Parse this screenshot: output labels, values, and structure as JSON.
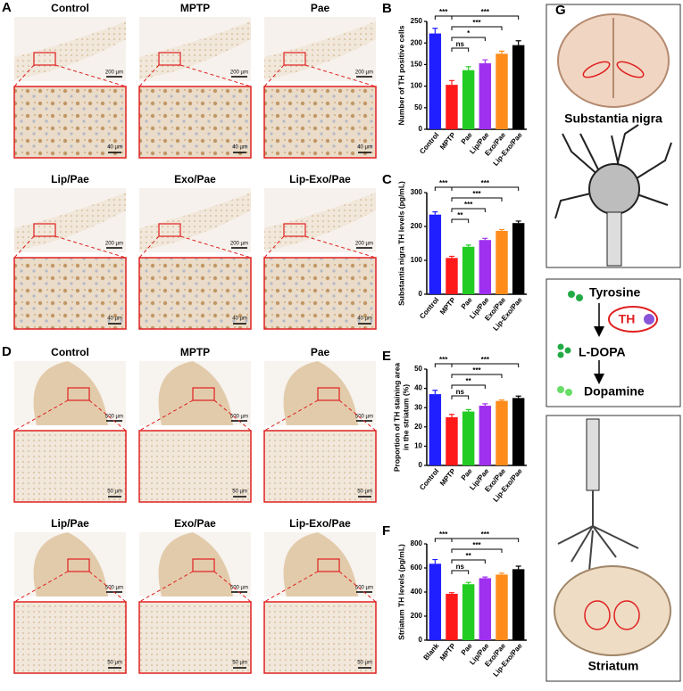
{
  "figure": {
    "panels": [
      {
        "letter": "A",
        "groups": [
          "Control",
          "MPTP",
          "Pae",
          "Lip/Pae",
          "Exo/Pae",
          "Lip-Exo/Pae"
        ],
        "scale_overview": "200 µm",
        "scale_zoom": "40 µm"
      },
      {
        "letter": "D",
        "groups": [
          "Control",
          "MPTP",
          "Pae",
          "Lip/Pae",
          "Exo/Pae",
          "Lip-Exo/Pae"
        ],
        "scale_overview": "500 µm",
        "scale_zoom": "50 µm"
      }
    ],
    "schematic": {
      "letter": "G",
      "top_label": "Substantia nigra",
      "pathway": [
        "Tyrosine",
        "L-DOPA",
        "Dopamine"
      ],
      "enzyme": "TH",
      "bottom_label": "Striatum"
    }
  },
  "chart_data": [
    {
      "panel": "B",
      "type": "bar",
      "ylabel": [
        "Number of TH positive cells"
      ],
      "categories": [
        "Control",
        "MPTP",
        "Pae",
        "Lip/Pae",
        "Exo/Pae",
        "Lip-Exo/Pae"
      ],
      "values": [
        222,
        103,
        137,
        153,
        175,
        195
      ],
      "errors": [
        12,
        10,
        8,
        8,
        6,
        10
      ],
      "colors": [
        "#1f1fff",
        "#ff1a1a",
        "#22cc22",
        "#a030f0",
        "#ff8c1a",
        "#000000"
      ],
      "ylim": [
        0,
        250
      ],
      "yticks": [
        0,
        50,
        100,
        150,
        200,
        250
      ],
      "annotations": [
        {
          "label": "***",
          "from": 0,
          "to": 1
        },
        {
          "label": "***",
          "from": 1,
          "to": 5
        },
        {
          "label": "***",
          "from": 1,
          "to": 4
        },
        {
          "label": "*",
          "from": 1,
          "to": 3
        },
        {
          "label": "ns",
          "from": 1,
          "to": 2
        }
      ]
    },
    {
      "panel": "C",
      "type": "bar",
      "ylabel": [
        "Substantia nigra TH levels (pg/mL)"
      ],
      "categories": [
        "Control",
        "MPTP",
        "Pae",
        "Lip/Pae",
        "Exo/Pae",
        "Lip-Exo/Pae"
      ],
      "values": [
        235,
        107,
        140,
        160,
        187,
        210
      ],
      "errors": [
        8,
        5,
        5,
        5,
        4,
        6
      ],
      "colors": [
        "#1f1fff",
        "#ff1a1a",
        "#22cc22",
        "#a030f0",
        "#ff8c1a",
        "#000000"
      ],
      "ylim": [
        0,
        300
      ],
      "yticks": [
        0,
        100,
        200,
        300
      ],
      "annotations": [
        {
          "label": "***",
          "from": 0,
          "to": 1
        },
        {
          "label": "***",
          "from": 1,
          "to": 5
        },
        {
          "label": "***",
          "from": 1,
          "to": 4
        },
        {
          "label": "***",
          "from": 1,
          "to": 3
        },
        {
          "label": "**",
          "from": 1,
          "to": 2
        }
      ]
    },
    {
      "panel": "E",
      "type": "bar",
      "ylabel": [
        "Proportion of TH staining area",
        "in the striatum (%)"
      ],
      "categories": [
        "Control",
        "MPTP",
        "Pae",
        "Lip/Pae",
        "Exo/Pae",
        "Lip-Exo/Pae"
      ],
      "values": [
        37,
        25,
        28,
        31,
        33.5,
        35
      ],
      "errors": [
        2,
        1.5,
        1,
        1,
        0.5,
        1
      ],
      "colors": [
        "#1f1fff",
        "#ff1a1a",
        "#22cc22",
        "#a030f0",
        "#ff8c1a",
        "#000000"
      ],
      "ylim": [
        0,
        50
      ],
      "yticks": [
        0,
        10,
        20,
        30,
        40,
        50
      ],
      "annotations": [
        {
          "label": "***",
          "from": 0,
          "to": 1
        },
        {
          "label": "***",
          "from": 1,
          "to": 5
        },
        {
          "label": "***",
          "from": 1,
          "to": 4
        },
        {
          "label": "**",
          "from": 1,
          "to": 3
        },
        {
          "label": "ns",
          "from": 1,
          "to": 2
        }
      ]
    },
    {
      "panel": "F",
      "type": "bar",
      "ylabel": [
        "Striatum TH levels (pg/mL)"
      ],
      "categories": [
        "Blank",
        "MPTP",
        "Pae",
        "Lip/Pae",
        "Exo/Pae",
        "Lip-Exo/Pae"
      ],
      "values": [
        635,
        385,
        465,
        515,
        545,
        590
      ],
      "errors": [
        35,
        10,
        15,
        10,
        12,
        25
      ],
      "colors": [
        "#1f1fff",
        "#ff1a1a",
        "#22cc22",
        "#a030f0",
        "#ff8c1a",
        "#000000"
      ],
      "ylim": [
        0,
        800
      ],
      "yticks": [
        0,
        200,
        400,
        600,
        800
      ],
      "annotations": [
        {
          "label": "***",
          "from": 0,
          "to": 1
        },
        {
          "label": "***",
          "from": 1,
          "to": 5
        },
        {
          "label": "***",
          "from": 1,
          "to": 4
        },
        {
          "label": "**",
          "from": 1,
          "to": 3
        },
        {
          "label": "ns",
          "from": 1,
          "to": 2
        }
      ]
    }
  ]
}
